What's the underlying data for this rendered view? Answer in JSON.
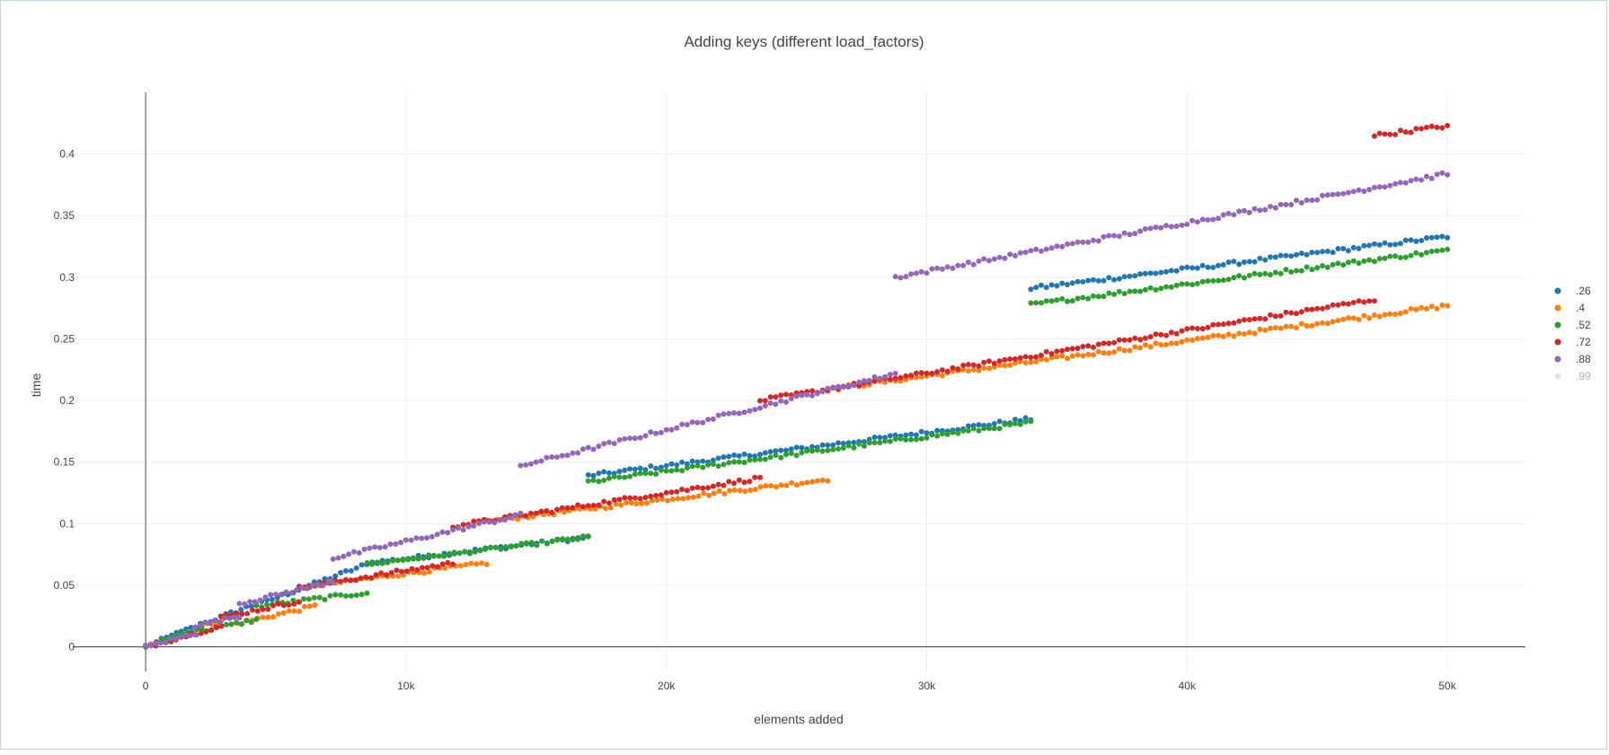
{
  "chart_data": {
    "type": "scatter",
    "title": "Adding keys (different load_factors)",
    "xlabel": "elements added",
    "ylabel": "time",
    "xlim": [
      -2800,
      53000
    ],
    "ylim": [
      -0.02,
      0.45
    ],
    "grid": true,
    "legend_position": "right",
    "x_ticks": [
      {
        "value": 0,
        "label": "0"
      },
      {
        "value": 10000,
        "label": "10k"
      },
      {
        "value": 20000,
        "label": "20k"
      },
      {
        "value": 30000,
        "label": "30k"
      },
      {
        "value": 40000,
        "label": "40k"
      },
      {
        "value": 50000,
        "label": "50k"
      }
    ],
    "y_ticks": [
      {
        "value": 0,
        "label": "0"
      },
      {
        "value": 0.05,
        "label": "0.05"
      },
      {
        "value": 0.1,
        "label": "0.1"
      },
      {
        "value": 0.15,
        "label": "0.15"
      },
      {
        "value": 0.2,
        "label": "0.2"
      },
      {
        "value": 0.25,
        "label": "0.25"
      },
      {
        "value": 0.3,
        "label": "0.3"
      },
      {
        "value": 0.35,
        "label": "0.35"
      },
      {
        "value": 0.4,
        "label": "0.4"
      }
    ],
    "series": [
      {
        "name": ".26",
        "color": "#1f77b4",
        "visible": true,
        "segments": [
          {
            "x0": 0,
            "x1": 1000,
            "y0": 0.0,
            "y1": 0.009
          },
          {
            "x0": 1000,
            "x1": 2100,
            "y0": 0.009,
            "y1": 0.018
          },
          {
            "x0": 2100,
            "x1": 4250,
            "y0": 0.018,
            "y1": 0.035
          },
          {
            "x0": 4250,
            "x1": 8500,
            "y0": 0.034,
            "y1": 0.067
          },
          {
            "x0": 8500,
            "x1": 17000,
            "y0": 0.068,
            "y1": 0.089
          },
          {
            "x0": 17000,
            "x1": 34000,
            "y0": 0.139,
            "y1": 0.185
          },
          {
            "x0": 34000,
            "x1": 50000,
            "y0": 0.291,
            "y1": 0.333
          }
        ]
      },
      {
        "name": ".4",
        "color": "#ff7f0e",
        "visible": true,
        "segments": [
          {
            "x0": 0,
            "x1": 1600,
            "y0": 0.0,
            "y1": 0.012
          },
          {
            "x0": 1600,
            "x1": 3300,
            "y0": 0.012,
            "y1": 0.025
          },
          {
            "x0": 3300,
            "x1": 6500,
            "y0": 0.018,
            "y1": 0.033
          },
          {
            "x0": 6500,
            "x1": 13100,
            "y0": 0.05,
            "y1": 0.068
          },
          {
            "x0": 13100,
            "x1": 26200,
            "y0": 0.102,
            "y1": 0.136
          },
          {
            "x0": 26200,
            "x1": 50000,
            "y0": 0.209,
            "y1": 0.277
          }
        ]
      },
      {
        "name": ".52",
        "color": "#2ca02c",
        "visible": true,
        "segments": [
          {
            "x0": 0,
            "x1": 1050,
            "y0": 0.0,
            "y1": 0.008
          },
          {
            "x0": 1050,
            "x1": 2150,
            "y0": 0.008,
            "y1": 0.016
          },
          {
            "x0": 2150,
            "x1": 4250,
            "y0": 0.013,
            "y1": 0.022
          },
          {
            "x0": 4250,
            "x1": 8500,
            "y0": 0.033,
            "y1": 0.044
          },
          {
            "x0": 8500,
            "x1": 17000,
            "y0": 0.067,
            "y1": 0.089
          },
          {
            "x0": 17000,
            "x1": 34000,
            "y0": 0.134,
            "y1": 0.182
          },
          {
            "x0": 34000,
            "x1": 50000,
            "y0": 0.278,
            "y1": 0.322
          }
        ]
      },
      {
        "name": ".72",
        "color": "#d62728",
        "visible": true,
        "segments": [
          {
            "x0": 0,
            "x1": 2900,
            "y0": 0.0,
            "y1": 0.017
          },
          {
            "x0": 2900,
            "x1": 5900,
            "y0": 0.024,
            "y1": 0.037
          },
          {
            "x0": 5900,
            "x1": 11800,
            "y0": 0.048,
            "y1": 0.068
          },
          {
            "x0": 11800,
            "x1": 23600,
            "y0": 0.098,
            "y1": 0.137
          },
          {
            "x0": 23600,
            "x1": 47200,
            "y0": 0.2,
            "y1": 0.282
          },
          {
            "x0": 47200,
            "x1": 50000,
            "y0": 0.415,
            "y1": 0.423
          }
        ]
      },
      {
        "name": ".88",
        "color": "#9467bd",
        "visible": true,
        "segments": [
          {
            "x0": 0,
            "x1": 1900,
            "y0": 0.0,
            "y1": 0.011
          },
          {
            "x0": 1900,
            "x1": 3600,
            "y0": 0.017,
            "y1": 0.025
          },
          {
            "x0": 3600,
            "x1": 7200,
            "y0": 0.035,
            "y1": 0.053
          },
          {
            "x0": 7200,
            "x1": 14400,
            "y0": 0.072,
            "y1": 0.107
          },
          {
            "x0": 14400,
            "x1": 28800,
            "y0": 0.147,
            "y1": 0.222
          },
          {
            "x0": 28800,
            "x1": 50000,
            "y0": 0.3,
            "y1": 0.384
          }
        ]
      },
      {
        "name": ".99",
        "color": "#c8c8c8",
        "visible": false,
        "segments": []
      }
    ]
  }
}
